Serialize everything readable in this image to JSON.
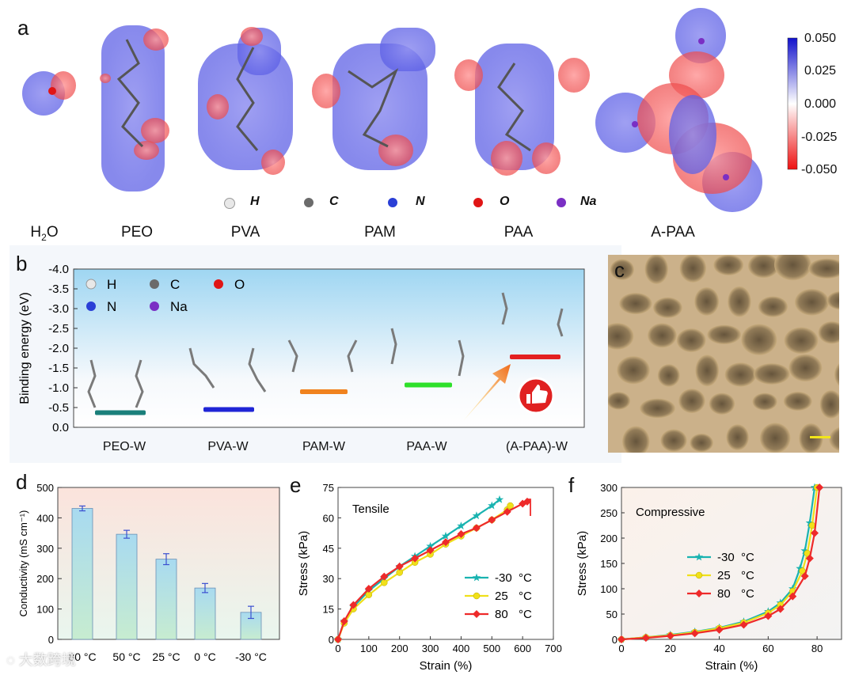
{
  "panels": {
    "a": {
      "letter": "a",
      "molecules": [
        "H2O",
        "PEO",
        "PVA",
        "PAM",
        "PAA",
        "A-PAA"
      ],
      "atom_legend": [
        {
          "symbol": "H",
          "color": "#e8e8e8"
        },
        {
          "symbol": "C",
          "color": "#6b6b6b"
        },
        {
          "symbol": "N",
          "color": "#2a3fd6"
        },
        {
          "symbol": "O",
          "color": "#e01515"
        },
        {
          "symbol": "Na",
          "color": "#7a2fc4"
        }
      ],
      "colorbar_ticks": [
        "0.050",
        "0.025",
        "0.000",
        "-0.025",
        "-0.050"
      ]
    },
    "b": {
      "letter": "b",
      "chart_data": {
        "type": "bar",
        "ylabel": "Binding energy (eV)",
        "ylim": [
          0.0,
          -4.0
        ],
        "yticks": [
          "-4.0",
          "-3.5",
          "-3.0",
          "-2.5",
          "-2.0",
          "-1.5",
          "-1.0",
          "-0.5",
          "0.0"
        ],
        "categories": [
          "PEO-W",
          "PVA-W",
          "PAM-W",
          "PAA-W",
          "(A-PAA)-W"
        ],
        "values": [
          -0.37,
          -0.45,
          -0.9,
          -1.07,
          -1.78
        ],
        "colors": [
          "#1a7f7a",
          "#1f25d6",
          "#f0821e",
          "#2ee02a",
          "#e32020"
        ],
        "legend": [
          {
            "symbol": "H",
            "color": "#e8e8e8"
          },
          {
            "symbol": "C",
            "color": "#6b6b6b"
          },
          {
            "symbol": "O",
            "color": "#e01515"
          },
          {
            "symbol": "N",
            "color": "#2a3fd6"
          },
          {
            "symbol": "Na",
            "color": "#7a2fc4"
          }
        ]
      }
    },
    "c": {
      "letter": "c"
    },
    "d": {
      "letter": "d",
      "chart_data": {
        "type": "bar",
        "ylabel": "Conductivity (mS cm⁻¹)",
        "ylim": [
          0,
          500
        ],
        "yticks": [
          "0",
          "100",
          "200",
          "300",
          "400",
          "500"
        ],
        "categories": [
          "80 °C",
          "50 °C",
          "25 °C",
          "0 °C",
          "-30 °C"
        ],
        "values": [
          431,
          346,
          264,
          169,
          89
        ],
        "errors": [
          8,
          13,
          18,
          15,
          20
        ]
      }
    },
    "e": {
      "letter": "e",
      "chart_data": {
        "type": "line",
        "annotation": "Tensile",
        "xlabel": "Strain (%)",
        "ylabel": "Stress (kPa)",
        "xlim": [
          0,
          700
        ],
        "ylim": [
          0,
          75
        ],
        "xticks": [
          "0",
          "100",
          "200",
          "300",
          "400",
          "500",
          "600",
          "700"
        ],
        "yticks": [
          "0",
          "15",
          "30",
          "45",
          "60",
          "75"
        ],
        "series": [
          {
            "name": "-30 °C",
            "label": "-30",
            "unit": "°C",
            "color": "#19b3b0",
            "marker": "star",
            "x": [
              0,
              20,
              50,
              100,
              150,
              200,
              250,
              300,
              350,
              400,
              450,
              500,
              525
            ],
            "y": [
              0,
              9,
              16,
              24,
              30,
              36,
              41,
              46,
              51,
              56,
              61,
              66,
              69
            ]
          },
          {
            "name": "25 °C",
            "label": "25",
            "unit": "°C",
            "color": "#f0e01a",
            "marker": "circle",
            "x": [
              0,
              20,
              50,
              100,
              150,
              200,
              250,
              300,
              350,
              400,
              450,
              500,
              550,
              560
            ],
            "y": [
              0,
              8,
              15,
              22,
              28,
              33,
              38,
              42,
              47,
              51,
              55,
              59,
              64,
              66
            ]
          },
          {
            "name": "80 °C",
            "label": "80",
            "unit": "°C",
            "color": "#ee2a2a",
            "marker": "diamond",
            "x": [
              0,
              20,
              50,
              100,
              150,
              200,
              250,
              300,
              350,
              400,
              450,
              500,
              550,
              600,
              615
            ],
            "y": [
              0,
              9,
              17,
              25,
              31,
              36,
              40,
              44,
              48,
              52,
              55,
              59,
              63,
              67,
              68
            ]
          }
        ]
      }
    },
    "f": {
      "letter": "f",
      "chart_data": {
        "type": "line",
        "annotation": "Compressive",
        "xlabel": "Strain (%)",
        "ylabel": "Stress (kPa)",
        "xlim": [
          0,
          90
        ],
        "ylim": [
          0,
          300
        ],
        "xticks": [
          "0",
          "20",
          "40",
          "60",
          "80"
        ],
        "yticks": [
          "0",
          "50",
          "100",
          "150",
          "200",
          "250",
          "300"
        ],
        "series": [
          {
            "name": "-30 °C",
            "label": "-30",
            "unit": "°C",
            "color": "#19b3b0",
            "marker": "star",
            "x": [
              0,
              10,
              20,
              30,
              40,
              50,
              60,
              65,
              70,
              73,
              75,
              77,
              79
            ],
            "y": [
              0,
              4,
              9,
              15,
              23,
              35,
              55,
              72,
              100,
              140,
              175,
              230,
              300
            ]
          },
          {
            "name": "25 °C",
            "label": "25",
            "unit": "°C",
            "color": "#f0e01a",
            "marker": "circle",
            "x": [
              0,
              10,
              20,
              30,
              40,
              50,
              60,
              65,
              70,
              74,
              76,
              78,
              80
            ],
            "y": [
              0,
              4,
              8,
              14,
              22,
              33,
              52,
              68,
              95,
              135,
              170,
              225,
              300
            ]
          },
          {
            "name": "80 °C",
            "label": "80",
            "unit": "°C",
            "color": "#ee2a2a",
            "marker": "diamond",
            "x": [
              0,
              10,
              20,
              30,
              40,
              50,
              60,
              65,
              70,
              75,
              77,
              79,
              81
            ],
            "y": [
              0,
              3,
              7,
              12,
              19,
              29,
              46,
              60,
              85,
              125,
              160,
              210,
              300
            ]
          }
        ]
      }
    }
  },
  "watermark": "大数跨境"
}
